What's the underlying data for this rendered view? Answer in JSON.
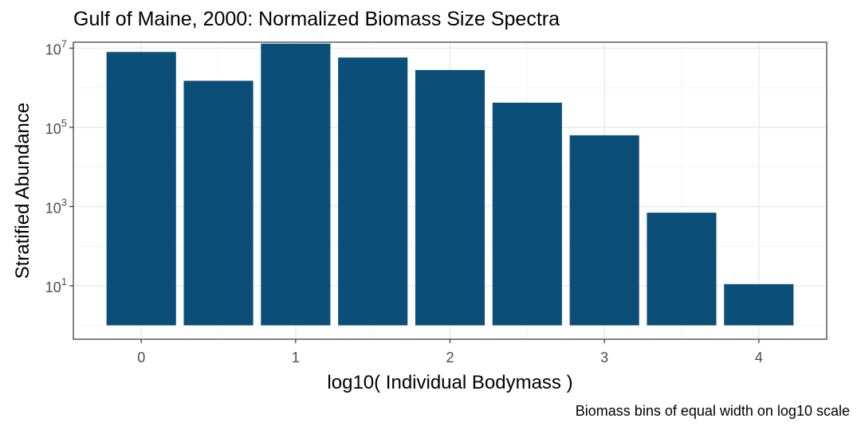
{
  "chart_data": {
    "type": "bar",
    "title": "Gulf of Maine, 2000: Normalized Biomass Size Spectra",
    "xlabel": "log10( Individual Bodymass )",
    "ylabel": "Stratified Abundance",
    "caption": "Biomass bins of equal width on log10 scale",
    "y_scale": "log10",
    "x": [
      0,
      0.5,
      1,
      1.5,
      2,
      2.5,
      3,
      3.5,
      4
    ],
    "values": [
      8000000,
      1500000,
      13000000,
      5800000,
      2800000,
      420000,
      63000,
      700,
      11
    ],
    "bar_baseline": 1,
    "xlim": [
      -0.44,
      4.44
    ],
    "ylim_log10": [
      -0.35,
      7.15
    ],
    "x_ticks": [
      {
        "value": 0,
        "label": "0"
      },
      {
        "value": 1,
        "label": "1"
      },
      {
        "value": 2,
        "label": "2"
      },
      {
        "value": 3,
        "label": "3"
      },
      {
        "value": 4,
        "label": "4"
      }
    ],
    "y_ticks": [
      {
        "value": 10,
        "base": "10",
        "exp": "1"
      },
      {
        "value": 1000,
        "base": "10",
        "exp": "3"
      },
      {
        "value": 100000,
        "base": "10",
        "exp": "5"
      },
      {
        "value": 10000000,
        "base": "10",
        "exp": "7"
      }
    ],
    "grid": true,
    "colors": {
      "bar": "#0b4f78",
      "panel_border": "#333333",
      "grid_major": "#ebebeb",
      "grid_minor": "#f5f5f5",
      "tick_text": "#4d4d4d"
    }
  }
}
